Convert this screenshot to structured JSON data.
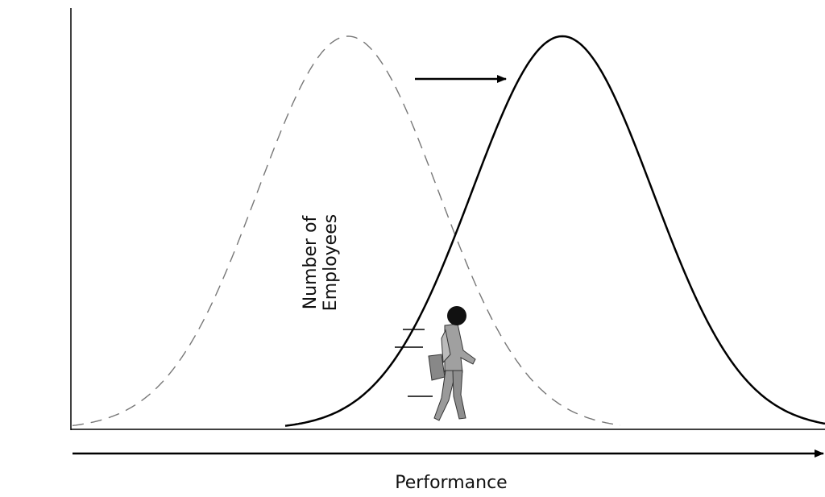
{
  "y_axis_label": [
    "Number of",
    "Employees"
  ],
  "x_axis_label": "Performance"
}
